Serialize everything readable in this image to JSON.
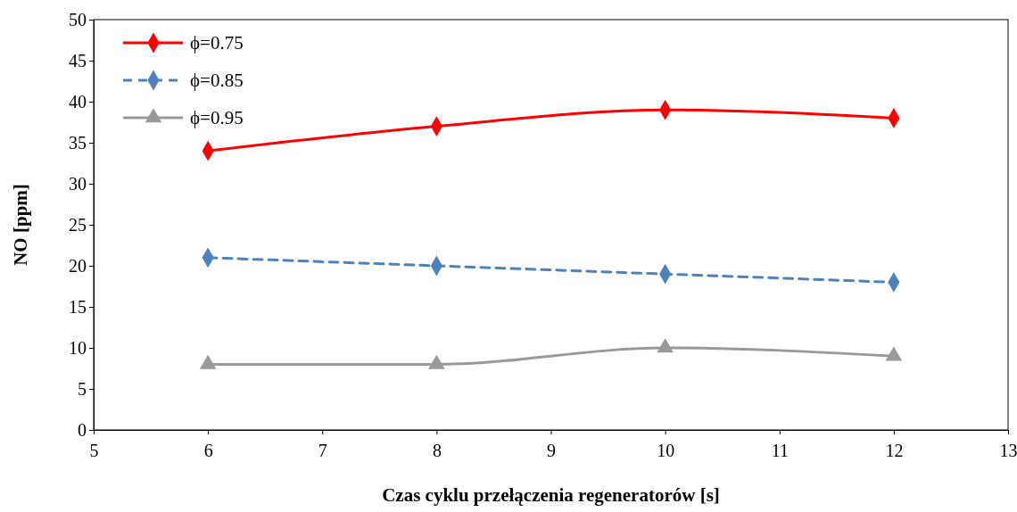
{
  "chart_data": {
    "type": "line",
    "xlabel": "Czas cyklu przełączenia regeneratorów [s]",
    "ylabel": "NO [ppm]",
    "x": [
      6,
      8,
      10,
      12
    ],
    "series": [
      {
        "name": "ϕ=0.75",
        "color": "#ff0000",
        "values": [
          34,
          37,
          39,
          38
        ],
        "marker": "diamond",
        "line_style": "solid"
      },
      {
        "name": "ϕ=0.85",
        "color": "#4f81bd",
        "values": [
          21,
          20,
          19,
          18
        ],
        "marker": "diamond",
        "line_style": "dashed"
      },
      {
        "name": "ϕ=0.95",
        "color": "#999999",
        "values": [
          8,
          8,
          10,
          9
        ],
        "marker": "triangle",
        "line_style": "solid"
      }
    ],
    "xlim": [
      5,
      13
    ],
    "xticks": [
      5,
      6,
      7,
      8,
      9,
      10,
      11,
      12,
      13
    ],
    "ylim": [
      0,
      50
    ],
    "yticks": [
      0,
      5,
      10,
      15,
      20,
      25,
      30,
      35,
      40,
      45,
      50
    ],
    "grid": false,
    "legend": "top left"
  }
}
